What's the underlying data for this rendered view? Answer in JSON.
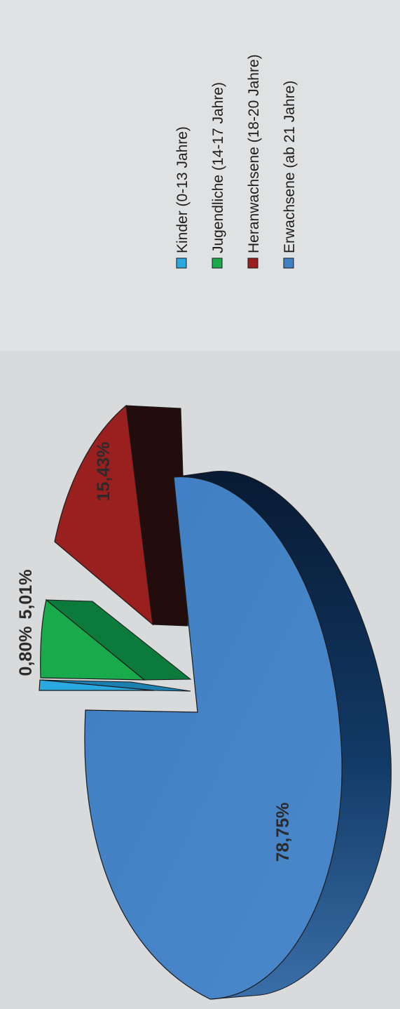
{
  "chart_data": {
    "type": "pie",
    "style": "3d-exploded",
    "orientation": "rotated-90-ccw",
    "legend_position": "right",
    "categories": [
      "Kinder (0-13 Jahre)",
      "Jugendliche (14-17 Jahre)",
      "Heranwachsene (18-20 Jahre)",
      "Erwachsene (ab 21 Jahre)"
    ],
    "values": [
      0.8,
      5.01,
      15.43,
      78.75
    ],
    "labels": [
      "0,80%",
      "5,01%",
      "15,43%",
      "78,75%"
    ],
    "colors": [
      "#29a8e0",
      "#18aa4b",
      "#9b1f1f",
      "#4180c4"
    ],
    "background": "#d9dadb"
  }
}
